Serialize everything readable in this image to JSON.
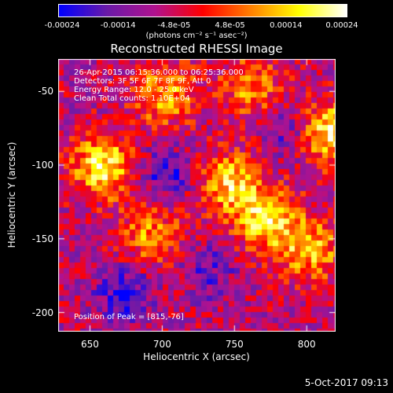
{
  "colorbar": {
    "ticks": [
      "-0.00024",
      "-0.00014",
      "-4.8e-05",
      "4.8e-05",
      "0.00014",
      "0.00024"
    ],
    "unit_label": "(photons cm⁻² s⁻¹ asec⁻²)",
    "colors": [
      "#0000ff",
      "#6a1aa8",
      "#b0128f",
      "#ff0000",
      "#ff7f00",
      "#ffff00",
      "#ffffff"
    ]
  },
  "title": "Reconstructed RHESSI Image",
  "annotations": {
    "line1": "26-Apr-2015 06:15:36.000 to 06:25:36.000",
    "line2": "Detectors: 3F 5F 6F 7F 8F 9F, Att 0",
    "line3": "Energy Range: 12.0 - 25.0 keV",
    "line4": "Clean     Total counts: 1.10E+04",
    "peak": "Position of Peak = [815,-76]"
  },
  "footer": "5-Oct-2017 09:13",
  "chart_data": {
    "type": "heatmap",
    "title": "Reconstructed RHESSI Image",
    "xlabel": "Heliocentric X (arcsec)",
    "ylabel": "Heliocentric Y (arcsec)",
    "xlim": [
      628,
      820
    ],
    "ylim": [
      -213,
      -28
    ],
    "xticks": [
      650,
      700,
      750,
      800
    ],
    "yticks": [
      -50,
      -100,
      -150,
      -200
    ],
    "colorbar_range": [
      -0.00024,
      0.00024
    ],
    "peak": [
      815,
      -76
    ]
  }
}
